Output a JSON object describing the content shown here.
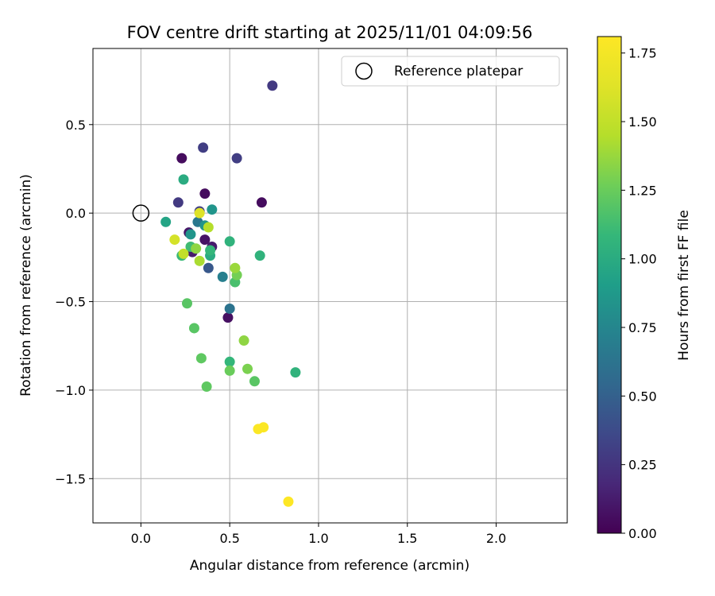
{
  "chart_data": {
    "type": "scatter",
    "title": "FOV centre drift starting at 2025/11/01 04:09:56",
    "xlabel": "Angular distance from reference (arcmin)",
    "ylabel": "Rotation from reference (arcmin)",
    "xlim": [
      -0.27,
      2.4
    ],
    "ylim": [
      -1.75,
      0.93
    ],
    "xticks": [
      0.0,
      0.5,
      1.0,
      1.5,
      2.0
    ],
    "xtick_labels": [
      "0.0",
      "0.5",
      "1.0",
      "1.5",
      "2.0"
    ],
    "yticks": [
      0.5,
      0.0,
      -0.5,
      -1.0,
      -1.5
    ],
    "ytick_labels": [
      "0.5",
      "0.0",
      "−0.5",
      "−1.0",
      "−1.5"
    ],
    "grid": true,
    "legend": {
      "position": "top-right",
      "entries": [
        "Reference platepar"
      ]
    },
    "reference_point": {
      "x": 0.0,
      "y": 0.0
    },
    "colorbar": {
      "label": "Hours from first FF file",
      "min": 0.0,
      "max": 1.81,
      "ticks": [
        0.0,
        0.25,
        0.5,
        0.75,
        1.0,
        1.25,
        1.5,
        1.75
      ],
      "tick_labels": [
        "0.00",
        "0.25",
        "0.50",
        "0.75",
        "1.00",
        "1.25",
        "1.50",
        "1.75"
      ],
      "colormap": "viridis"
    },
    "points": [
      {
        "x": 0.23,
        "y": 0.31,
        "c": 0.05
      },
      {
        "x": 0.68,
        "y": 0.06,
        "c": 0.05
      },
      {
        "x": 0.36,
        "y": 0.11,
        "c": 0.05
      },
      {
        "x": 0.49,
        "y": -0.59,
        "c": 0.07
      },
      {
        "x": 0.36,
        "y": -0.15,
        "c": 0.08
      },
      {
        "x": 0.27,
        "y": -0.11,
        "c": 0.1
      },
      {
        "x": 0.4,
        "y": -0.19,
        "c": 0.12
      },
      {
        "x": 0.29,
        "y": -0.22,
        "c": 0.12
      },
      {
        "x": 0.21,
        "y": 0.06,
        "c": 0.28
      },
      {
        "x": 0.54,
        "y": 0.31,
        "c": 0.3
      },
      {
        "x": 0.35,
        "y": 0.37,
        "c": 0.3
      },
      {
        "x": 0.74,
        "y": 0.72,
        "c": 0.28
      },
      {
        "x": 0.33,
        "y": 0.01,
        "c": 0.3
      },
      {
        "x": 0.38,
        "y": -0.31,
        "c": 0.45
      },
      {
        "x": 0.5,
        "y": -0.54,
        "c": 0.62
      },
      {
        "x": 0.32,
        "y": -0.05,
        "c": 0.65
      },
      {
        "x": 0.46,
        "y": -0.36,
        "c": 0.7
      },
      {
        "x": 0.36,
        "y": -0.07,
        "c": 0.85
      },
      {
        "x": 0.4,
        "y": 0.02,
        "c": 0.85
      },
      {
        "x": 0.28,
        "y": -0.12,
        "c": 0.85
      },
      {
        "x": 0.14,
        "y": -0.05,
        "c": 0.95
      },
      {
        "x": 0.24,
        "y": 0.19,
        "c": 1.0
      },
      {
        "x": 0.39,
        "y": -0.24,
        "c": 1.0
      },
      {
        "x": 0.67,
        "y": -0.24,
        "c": 1.05
      },
      {
        "x": 0.5,
        "y": -0.16,
        "c": 1.05
      },
      {
        "x": 0.39,
        "y": -0.21,
        "c": 1.08
      },
      {
        "x": 0.87,
        "y": -0.9,
        "c": 1.05
      },
      {
        "x": 0.5,
        "y": -0.84,
        "c": 1.08
      },
      {
        "x": 0.23,
        "y": -0.24,
        "c": 1.1
      },
      {
        "x": 0.28,
        "y": -0.19,
        "c": 1.12
      },
      {
        "x": 0.53,
        "y": -0.39,
        "c": 1.15
      },
      {
        "x": 0.26,
        "y": -0.51,
        "c": 1.2
      },
      {
        "x": 0.3,
        "y": -0.65,
        "c": 1.2
      },
      {
        "x": 0.34,
        "y": -0.82,
        "c": 1.22
      },
      {
        "x": 0.37,
        "y": -0.98,
        "c": 1.22
      },
      {
        "x": 0.64,
        "y": -0.95,
        "c": 1.2
      },
      {
        "x": 0.5,
        "y": -0.89,
        "c": 1.25
      },
      {
        "x": 0.6,
        "y": -0.88,
        "c": 1.3
      },
      {
        "x": 0.54,
        "y": -0.35,
        "c": 1.28
      },
      {
        "x": 0.31,
        "y": -0.2,
        "c": 1.35
      },
      {
        "x": 0.58,
        "y": -0.72,
        "c": 1.35
      },
      {
        "x": 0.53,
        "y": -0.31,
        "c": 1.38
      },
      {
        "x": 0.33,
        "y": -0.27,
        "c": 1.42
      },
      {
        "x": 0.38,
        "y": -0.08,
        "c": 1.45
      },
      {
        "x": 0.24,
        "y": -0.23,
        "c": 1.5
      },
      {
        "x": 0.19,
        "y": -0.15,
        "c": 1.58
      },
      {
        "x": 0.33,
        "y": 0.0,
        "c": 1.62
      },
      {
        "x": 0.66,
        "y": -1.22,
        "c": 1.8
      },
      {
        "x": 0.69,
        "y": -1.21,
        "c": 1.8
      },
      {
        "x": 0.83,
        "y": -1.63,
        "c": 1.81
      }
    ]
  }
}
